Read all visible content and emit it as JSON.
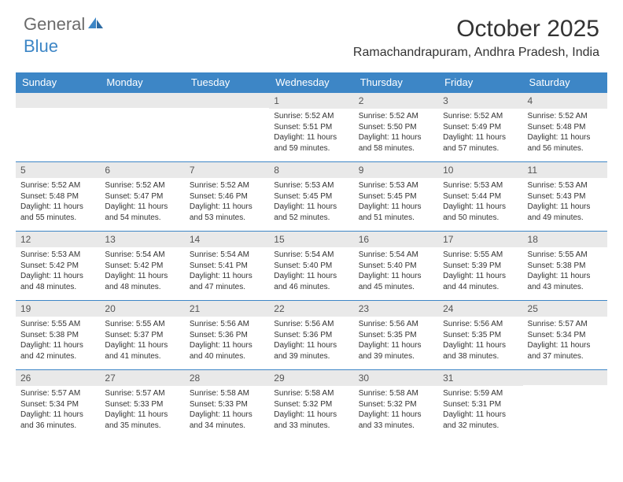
{
  "brand": {
    "part1": "General",
    "part2": "Blue",
    "text_color": "#6b6b6b",
    "accent_color": "#3d86c6"
  },
  "title": "October 2025",
  "location": "Ramachandrapuram, Andhra Pradesh, India",
  "colors": {
    "header_bg": "#3d86c6",
    "header_text": "#ffffff",
    "daynum_bg": "#e9e9e9",
    "row_border": "#3d86c6",
    "body_text": "#333333"
  },
  "day_headers": [
    "Sunday",
    "Monday",
    "Tuesday",
    "Wednesday",
    "Thursday",
    "Friday",
    "Saturday"
  ],
  "weeks": [
    [
      {
        "n": "",
        "lines": [
          "",
          "",
          "",
          ""
        ]
      },
      {
        "n": "",
        "lines": [
          "",
          "",
          "",
          ""
        ]
      },
      {
        "n": "",
        "lines": [
          "",
          "",
          "",
          ""
        ]
      },
      {
        "n": "1",
        "lines": [
          "Sunrise: 5:52 AM",
          "Sunset: 5:51 PM",
          "Daylight: 11 hours",
          "and 59 minutes."
        ]
      },
      {
        "n": "2",
        "lines": [
          "Sunrise: 5:52 AM",
          "Sunset: 5:50 PM",
          "Daylight: 11 hours",
          "and 58 minutes."
        ]
      },
      {
        "n": "3",
        "lines": [
          "Sunrise: 5:52 AM",
          "Sunset: 5:49 PM",
          "Daylight: 11 hours",
          "and 57 minutes."
        ]
      },
      {
        "n": "4",
        "lines": [
          "Sunrise: 5:52 AM",
          "Sunset: 5:48 PM",
          "Daylight: 11 hours",
          "and 56 minutes."
        ]
      }
    ],
    [
      {
        "n": "5",
        "lines": [
          "Sunrise: 5:52 AM",
          "Sunset: 5:48 PM",
          "Daylight: 11 hours",
          "and 55 minutes."
        ]
      },
      {
        "n": "6",
        "lines": [
          "Sunrise: 5:52 AM",
          "Sunset: 5:47 PM",
          "Daylight: 11 hours",
          "and 54 minutes."
        ]
      },
      {
        "n": "7",
        "lines": [
          "Sunrise: 5:52 AM",
          "Sunset: 5:46 PM",
          "Daylight: 11 hours",
          "and 53 minutes."
        ]
      },
      {
        "n": "8",
        "lines": [
          "Sunrise: 5:53 AM",
          "Sunset: 5:45 PM",
          "Daylight: 11 hours",
          "and 52 minutes."
        ]
      },
      {
        "n": "9",
        "lines": [
          "Sunrise: 5:53 AM",
          "Sunset: 5:45 PM",
          "Daylight: 11 hours",
          "and 51 minutes."
        ]
      },
      {
        "n": "10",
        "lines": [
          "Sunrise: 5:53 AM",
          "Sunset: 5:44 PM",
          "Daylight: 11 hours",
          "and 50 minutes."
        ]
      },
      {
        "n": "11",
        "lines": [
          "Sunrise: 5:53 AM",
          "Sunset: 5:43 PM",
          "Daylight: 11 hours",
          "and 49 minutes."
        ]
      }
    ],
    [
      {
        "n": "12",
        "lines": [
          "Sunrise: 5:53 AM",
          "Sunset: 5:42 PM",
          "Daylight: 11 hours",
          "and 48 minutes."
        ]
      },
      {
        "n": "13",
        "lines": [
          "Sunrise: 5:54 AM",
          "Sunset: 5:42 PM",
          "Daylight: 11 hours",
          "and 48 minutes."
        ]
      },
      {
        "n": "14",
        "lines": [
          "Sunrise: 5:54 AM",
          "Sunset: 5:41 PM",
          "Daylight: 11 hours",
          "and 47 minutes."
        ]
      },
      {
        "n": "15",
        "lines": [
          "Sunrise: 5:54 AM",
          "Sunset: 5:40 PM",
          "Daylight: 11 hours",
          "and 46 minutes."
        ]
      },
      {
        "n": "16",
        "lines": [
          "Sunrise: 5:54 AM",
          "Sunset: 5:40 PM",
          "Daylight: 11 hours",
          "and 45 minutes."
        ]
      },
      {
        "n": "17",
        "lines": [
          "Sunrise: 5:55 AM",
          "Sunset: 5:39 PM",
          "Daylight: 11 hours",
          "and 44 minutes."
        ]
      },
      {
        "n": "18",
        "lines": [
          "Sunrise: 5:55 AM",
          "Sunset: 5:38 PM",
          "Daylight: 11 hours",
          "and 43 minutes."
        ]
      }
    ],
    [
      {
        "n": "19",
        "lines": [
          "Sunrise: 5:55 AM",
          "Sunset: 5:38 PM",
          "Daylight: 11 hours",
          "and 42 minutes."
        ]
      },
      {
        "n": "20",
        "lines": [
          "Sunrise: 5:55 AM",
          "Sunset: 5:37 PM",
          "Daylight: 11 hours",
          "and 41 minutes."
        ]
      },
      {
        "n": "21",
        "lines": [
          "Sunrise: 5:56 AM",
          "Sunset: 5:36 PM",
          "Daylight: 11 hours",
          "and 40 minutes."
        ]
      },
      {
        "n": "22",
        "lines": [
          "Sunrise: 5:56 AM",
          "Sunset: 5:36 PM",
          "Daylight: 11 hours",
          "and 39 minutes."
        ]
      },
      {
        "n": "23",
        "lines": [
          "Sunrise: 5:56 AM",
          "Sunset: 5:35 PM",
          "Daylight: 11 hours",
          "and 39 minutes."
        ]
      },
      {
        "n": "24",
        "lines": [
          "Sunrise: 5:56 AM",
          "Sunset: 5:35 PM",
          "Daylight: 11 hours",
          "and 38 minutes."
        ]
      },
      {
        "n": "25",
        "lines": [
          "Sunrise: 5:57 AM",
          "Sunset: 5:34 PM",
          "Daylight: 11 hours",
          "and 37 minutes."
        ]
      }
    ],
    [
      {
        "n": "26",
        "lines": [
          "Sunrise: 5:57 AM",
          "Sunset: 5:34 PM",
          "Daylight: 11 hours",
          "and 36 minutes."
        ]
      },
      {
        "n": "27",
        "lines": [
          "Sunrise: 5:57 AM",
          "Sunset: 5:33 PM",
          "Daylight: 11 hours",
          "and 35 minutes."
        ]
      },
      {
        "n": "28",
        "lines": [
          "Sunrise: 5:58 AM",
          "Sunset: 5:33 PM",
          "Daylight: 11 hours",
          "and 34 minutes."
        ]
      },
      {
        "n": "29",
        "lines": [
          "Sunrise: 5:58 AM",
          "Sunset: 5:32 PM",
          "Daylight: 11 hours",
          "and 33 minutes."
        ]
      },
      {
        "n": "30",
        "lines": [
          "Sunrise: 5:58 AM",
          "Sunset: 5:32 PM",
          "Daylight: 11 hours",
          "and 33 minutes."
        ]
      },
      {
        "n": "31",
        "lines": [
          "Sunrise: 5:59 AM",
          "Sunset: 5:31 PM",
          "Daylight: 11 hours",
          "and 32 minutes."
        ]
      },
      {
        "n": "",
        "lines": [
          "",
          "",
          "",
          ""
        ]
      }
    ]
  ]
}
